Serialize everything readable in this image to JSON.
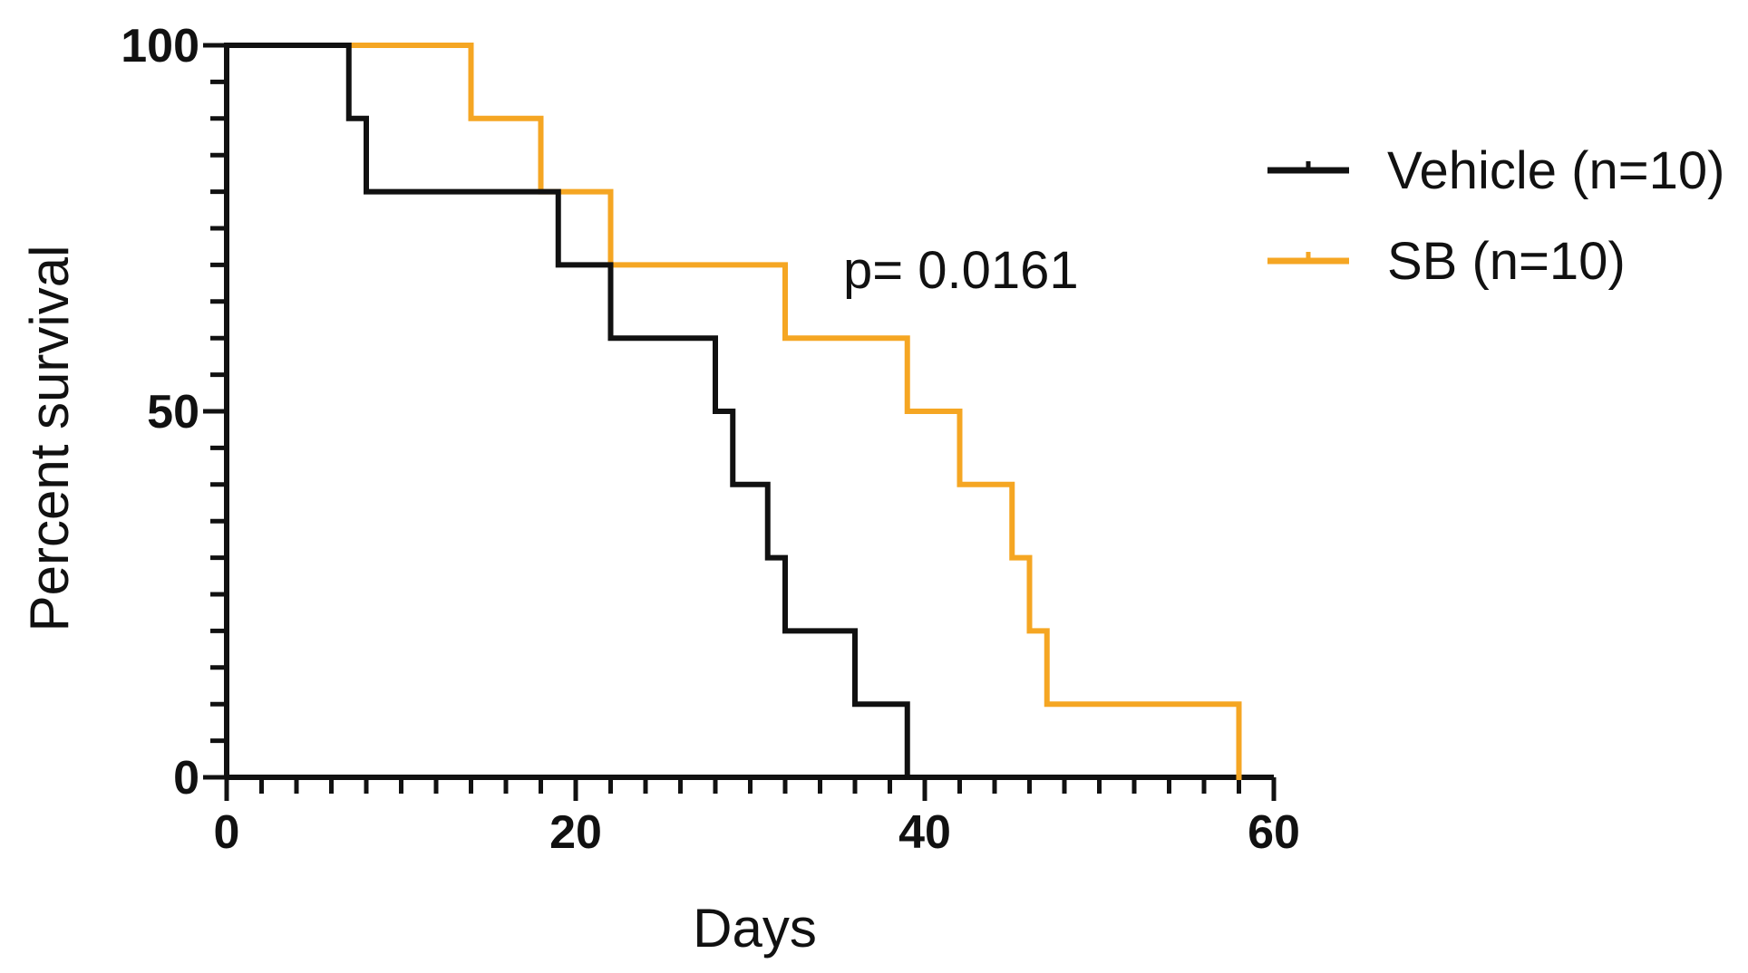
{
  "chart_data": {
    "type": "line",
    "subtype": "kaplan-meier",
    "title": "",
    "xlabel": "Days",
    "ylabel": "Percent survival",
    "xlim": [
      0,
      60
    ],
    "ylim": [
      0,
      100
    ],
    "x_ticks": [
      0,
      20,
      40,
      60
    ],
    "y_ticks": [
      0,
      50,
      100
    ],
    "x_minor_tick_step": 2,
    "y_minor_tick_step": 5,
    "grid": false,
    "legend_position": "right",
    "annotation": "p= 0.0161",
    "series": [
      {
        "name": "Vehicle (n=10)",
        "color": "#111111",
        "points": [
          {
            "x": 0,
            "y": 100
          },
          {
            "x": 7,
            "y": 90
          },
          {
            "x": 8,
            "y": 80
          },
          {
            "x": 19,
            "y": 70
          },
          {
            "x": 22,
            "y": 60
          },
          {
            "x": 28,
            "y": 50
          },
          {
            "x": 29,
            "y": 40
          },
          {
            "x": 31,
            "y": 30
          },
          {
            "x": 32,
            "y": 20
          },
          {
            "x": 36,
            "y": 10
          },
          {
            "x": 39,
            "y": 0
          }
        ]
      },
      {
        "name": "SB (n=10)",
        "color": "#F5A623",
        "points": [
          {
            "x": 0,
            "y": 100
          },
          {
            "x": 14,
            "y": 90
          },
          {
            "x": 18,
            "y": 80
          },
          {
            "x": 22,
            "y": 70
          },
          {
            "x": 32,
            "y": 60
          },
          {
            "x": 39,
            "y": 50
          },
          {
            "x": 42,
            "y": 40
          },
          {
            "x": 45,
            "y": 30
          },
          {
            "x": 46,
            "y": 20
          },
          {
            "x": 47,
            "y": 10
          },
          {
            "x": 58,
            "y": 0
          }
        ]
      }
    ]
  }
}
